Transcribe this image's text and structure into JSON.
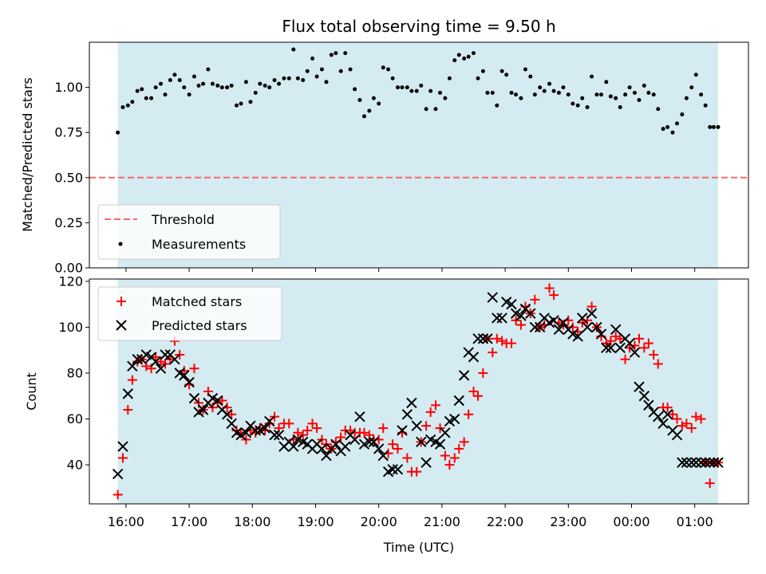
{
  "chart_data": [
    {
      "type": "scatter",
      "title": "Flux total observing time = 9.50 h",
      "xlabel": "",
      "ylabel": "Matched/Predicted stars",
      "ylim": [
        0,
        1.25
      ],
      "yticks": [
        "0.00",
        "0.25",
        "0.50",
        "0.75",
        "1.00"
      ],
      "ytick_values": [
        0,
        0.25,
        0.5,
        0.75,
        1.0
      ],
      "legend_position": "lower-left",
      "shaded_span": {
        "start": 15.87,
        "end": 25.37,
        "color": "#d4ebf1"
      },
      "threshold": {
        "name": "Threshold",
        "value": 0.5,
        "color": "#f36b6b"
      },
      "series": [
        {
          "name": "Measurements",
          "color": "#000000",
          "x": [
            15.87,
            15.95,
            16.03,
            16.1,
            16.18,
            16.25,
            16.32,
            16.4,
            16.47,
            16.55,
            16.62,
            16.7,
            16.77,
            16.85,
            16.92,
            17.0,
            17.08,
            17.15,
            17.22,
            17.3,
            17.37,
            17.45,
            17.52,
            17.6,
            17.67,
            17.75,
            17.82,
            17.9,
            17.97,
            18.05,
            18.12,
            18.2,
            18.27,
            18.35,
            18.42,
            18.5,
            18.58,
            18.65,
            18.72,
            18.8,
            18.87,
            18.95,
            19.02,
            19.1,
            19.17,
            19.25,
            19.32,
            19.4,
            19.47,
            19.55,
            19.62,
            19.7,
            19.77,
            19.85,
            19.92,
            20.0,
            20.07,
            20.15,
            20.22,
            20.3,
            20.37,
            20.45,
            20.52,
            20.6,
            20.67,
            20.75,
            20.82,
            20.9,
            20.97,
            21.05,
            21.12,
            21.2,
            21.27,
            21.35,
            21.42,
            21.5,
            21.57,
            21.65,
            21.72,
            21.8,
            21.87,
            21.95,
            22.02,
            22.1,
            22.17,
            22.25,
            22.32,
            22.4,
            22.47,
            22.55,
            22.62,
            22.7,
            22.77,
            22.85,
            22.92,
            23.0,
            23.07,
            23.15,
            23.22,
            23.3,
            23.37,
            23.45,
            23.52,
            23.6,
            23.67,
            23.75,
            23.82,
            23.9,
            23.97,
            24.05,
            24.12,
            24.2,
            24.27,
            24.35,
            24.42,
            24.5,
            24.57,
            24.65,
            24.72,
            24.8,
            24.87,
            24.95,
            25.02,
            25.1,
            25.17,
            25.24,
            25.3,
            25.37
          ],
          "y": [
            0.75,
            0.89,
            0.9,
            0.92,
            0.98,
            0.99,
            0.94,
            0.94,
            1.0,
            1.02,
            0.96,
            1.04,
            1.07,
            1.04,
            1.0,
            0.96,
            1.06,
            1.01,
            1.02,
            1.1,
            1.02,
            1.01,
            1.0,
            1.0,
            1.01,
            0.9,
            0.91,
            1.03,
            0.92,
            0.97,
            1.02,
            1.01,
            1.0,
            1.04,
            1.02,
            1.05,
            1.05,
            1.21,
            1.05,
            1.04,
            1.09,
            1.16,
            1.06,
            1.1,
            1.03,
            1.18,
            1.19,
            1.09,
            1.19,
            1.1,
            0.99,
            0.93,
            0.84,
            0.87,
            0.94,
            0.91,
            1.11,
            1.1,
            1.05,
            1.0,
            1.0,
            1.0,
            0.98,
            0.98,
            1.01,
            0.88,
            0.98,
            0.88,
            0.97,
            0.94,
            1.05,
            1.15,
            1.18,
            1.16,
            1.17,
            1.19,
            1.05,
            1.09,
            0.97,
            0.97,
            0.9,
            1.09,
            1.07,
            0.97,
            0.96,
            0.94,
            1.1,
            1.06,
            0.96,
            1.0,
            0.98,
            1.02,
            0.98,
            0.97,
            1.0,
            0.96,
            0.91,
            0.9,
            0.94,
            0.89,
            1.06,
            0.96,
            0.96,
            1.03,
            0.95,
            0.94,
            0.89,
            0.96,
            1.0,
            0.97,
            0.93,
            1.01,
            0.97,
            0.96,
            0.88,
            0.77,
            0.78,
            0.75,
            0.8,
            0.85,
            0.94,
            1.0,
            1.07,
            0.96,
            0.9,
            0.78,
            0.78,
            0.78
          ]
        }
      ]
    },
    {
      "type": "scatter",
      "title": "",
      "xlabel": "Time (UTC)",
      "ylabel": "Count",
      "ylim": [
        23,
        121
      ],
      "yticks": [
        "40",
        "60",
        "80",
        "100",
        "120"
      ],
      "ytick_values": [
        40,
        60,
        80,
        100,
        120
      ],
      "xticks": [
        "16:00",
        "17:00",
        "18:00",
        "19:00",
        "20:00",
        "21:00",
        "22:00",
        "23:00",
        "00:00",
        "01:00"
      ],
      "xtick_values": [
        16,
        17,
        18,
        19,
        20,
        21,
        22,
        23,
        24,
        25
      ],
      "xlim": [
        15.42,
        25.85
      ],
      "legend_position": "upper-left",
      "series": [
        {
          "name": "Matched stars",
          "marker": "plus",
          "color": "#ff0000",
          "x": [
            15.87,
            15.95,
            16.03,
            16.1,
            16.18,
            16.25,
            16.32,
            16.4,
            16.47,
            16.55,
            16.62,
            16.7,
            16.77,
            16.85,
            16.92,
            17.0,
            17.08,
            17.15,
            17.22,
            17.3,
            17.37,
            17.45,
            17.52,
            17.6,
            17.67,
            17.75,
            17.82,
            17.9,
            17.97,
            18.05,
            18.12,
            18.2,
            18.27,
            18.35,
            18.42,
            18.5,
            18.58,
            18.65,
            18.72,
            18.8,
            18.87,
            18.95,
            19.02,
            19.1,
            19.17,
            19.25,
            19.32,
            19.4,
            19.47,
            19.55,
            19.62,
            19.7,
            19.77,
            19.85,
            19.92,
            20.0,
            20.07,
            20.15,
            20.22,
            20.3,
            20.37,
            20.45,
            20.52,
            20.6,
            20.67,
            20.75,
            20.82,
            20.9,
            20.97,
            21.05,
            21.12,
            21.2,
            21.27,
            21.35,
            21.42,
            21.5,
            21.57,
            21.65,
            21.72,
            21.8,
            21.87,
            21.95,
            22.02,
            22.1,
            22.17,
            22.25,
            22.32,
            22.4,
            22.47,
            22.55,
            22.62,
            22.7,
            22.77,
            22.85,
            22.92,
            23.0,
            23.07,
            23.15,
            23.22,
            23.3,
            23.37,
            23.45,
            23.52,
            23.6,
            23.67,
            23.75,
            23.82,
            23.9,
            23.97,
            24.05,
            24.12,
            24.2,
            24.27,
            24.35,
            24.42,
            24.5,
            24.57,
            24.65,
            24.72,
            24.8,
            24.87,
            24.95,
            25.02,
            25.1,
            25.17,
            25.24,
            25.3,
            25.37
          ],
          "y": [
            27,
            43,
            64,
            77,
            85,
            86,
            83,
            82,
            87,
            85,
            84,
            86,
            94,
            88,
            81,
            75,
            82,
            67,
            64,
            72,
            65,
            67,
            68,
            65,
            62,
            55,
            54,
            51,
            55,
            54,
            56,
            55,
            58,
            61,
            56,
            58,
            58,
            51,
            54,
            53,
            55,
            58,
            56,
            51,
            49,
            47,
            50,
            52,
            55,
            55,
            54,
            54,
            54,
            53,
            51,
            51,
            56,
            45,
            49,
            47,
            54,
            43,
            37,
            37,
            50,
            57,
            63,
            66,
            56,
            44,
            40,
            43,
            47,
            50,
            62,
            72,
            70,
            80,
            95,
            89,
            95,
            94,
            93,
            93,
            103,
            101,
            109,
            106,
            112,
            100,
            101,
            117,
            114,
            102,
            101,
            103,
            100,
            98,
            102,
            103,
            109,
            100,
            96,
            93,
            94,
            96,
            95,
            86,
            91,
            92,
            95,
            91,
            93,
            88,
            84,
            65,
            65,
            62,
            60,
            57,
            58,
            56,
            61,
            60,
            41,
            32,
            41,
            41
          ]
        },
        {
          "name": "Predicted stars",
          "marker": "x",
          "color": "#000000",
          "x": [
            15.87,
            15.95,
            16.03,
            16.1,
            16.18,
            16.25,
            16.32,
            16.4,
            16.47,
            16.55,
            16.62,
            16.7,
            16.77,
            16.85,
            16.92,
            17.0,
            17.08,
            17.15,
            17.22,
            17.3,
            17.37,
            17.45,
            17.52,
            17.6,
            17.67,
            17.75,
            17.82,
            17.9,
            17.97,
            18.05,
            18.12,
            18.2,
            18.27,
            18.35,
            18.42,
            18.5,
            18.58,
            18.65,
            18.72,
            18.8,
            18.87,
            18.95,
            19.02,
            19.1,
            19.17,
            19.25,
            19.32,
            19.4,
            19.47,
            19.55,
            19.62,
            19.7,
            19.77,
            19.85,
            19.92,
            20.0,
            20.07,
            20.15,
            20.22,
            20.3,
            20.37,
            20.45,
            20.52,
            20.6,
            20.67,
            20.75,
            20.82,
            20.9,
            20.97,
            21.05,
            21.12,
            21.2,
            21.27,
            21.35,
            21.42,
            21.5,
            21.57,
            21.65,
            21.72,
            21.8,
            21.87,
            21.95,
            22.02,
            22.1,
            22.17,
            22.25,
            22.32,
            22.4,
            22.47,
            22.55,
            22.62,
            22.7,
            22.77,
            22.85,
            22.92,
            23.0,
            23.07,
            23.15,
            23.22,
            23.3,
            23.37,
            23.45,
            23.52,
            23.6,
            23.67,
            23.75,
            23.82,
            23.9,
            23.97,
            24.05,
            24.12,
            24.2,
            24.27,
            24.35,
            24.42,
            24.5,
            24.57,
            24.65,
            24.72,
            24.8,
            24.87,
            24.95,
            25.02,
            25.1,
            25.17,
            25.24,
            25.3,
            25.37
          ],
          "y": [
            36,
            48,
            71,
            83,
            86,
            86,
            88,
            87,
            85,
            82,
            88,
            88,
            86,
            80,
            79,
            76,
            69,
            63,
            64,
            67,
            69,
            68,
            64,
            62,
            58,
            54,
            53,
            54,
            57,
            55,
            55,
            56,
            59,
            53,
            53,
            48,
            50,
            48,
            51,
            50,
            49,
            47,
            49,
            47,
            44,
            47,
            49,
            46,
            48,
            53,
            51,
            61,
            49,
            50,
            50,
            47,
            44,
            37,
            38,
            38,
            55,
            62,
            67,
            57,
            50,
            41,
            51,
            50,
            49,
            54,
            59,
            60,
            68,
            79,
            89,
            87,
            95,
            95,
            95,
            113,
            104,
            104,
            111,
            110,
            106,
            105,
            108,
            106,
            100,
            100,
            104,
            102,
            103,
            99,
            102,
            99,
            97,
            96,
            104,
            100,
            106,
            100,
            97,
            91,
            91,
            99,
            91,
            95,
            93,
            89,
            74,
            70,
            66,
            63,
            61,
            58,
            62,
            55,
            53,
            41,
            41,
            41,
            41,
            41,
            41,
            41,
            41,
            41
          ]
        }
      ]
    }
  ]
}
